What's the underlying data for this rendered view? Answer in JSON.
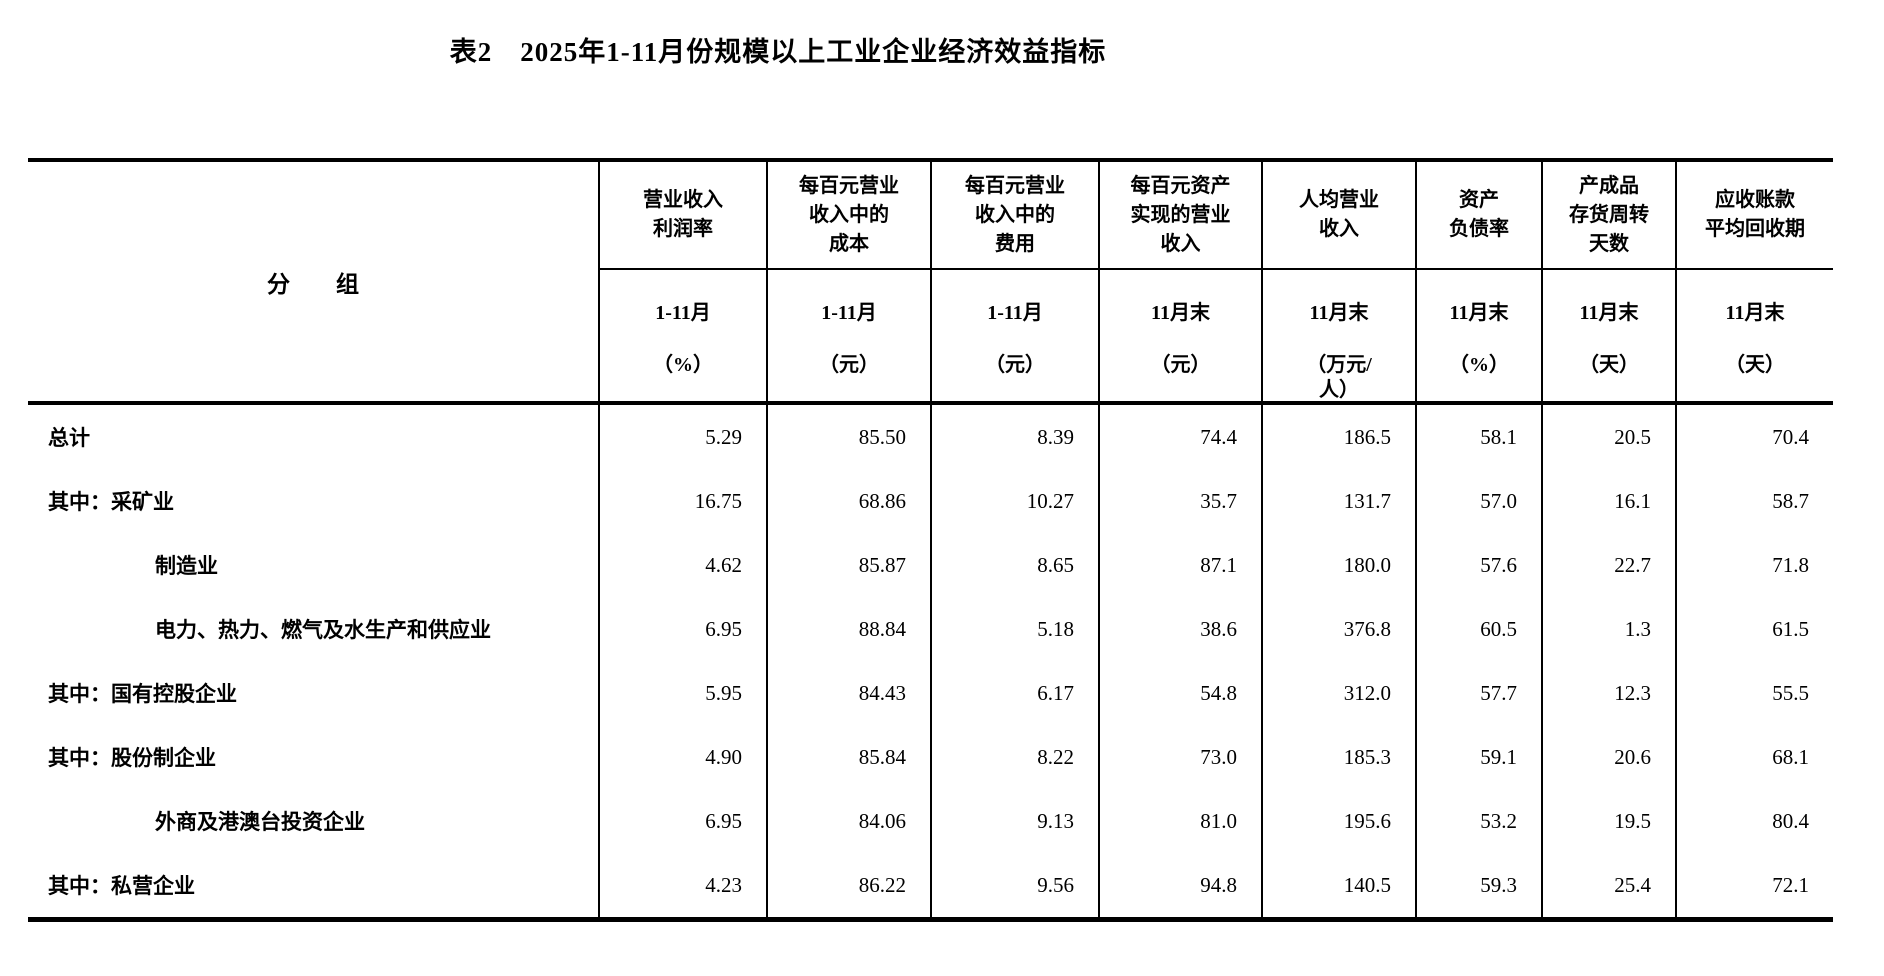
{
  "title": "表2　2025年1-11月份规模以上工业企业经济效益指标",
  "table": {
    "stub_header": "分　　组",
    "columns": [
      {
        "name": "营业收入\n利润率",
        "period": "1-11月",
        "unit": "（%）"
      },
      {
        "name": "每百元营业\n收入中的\n成本",
        "period": "1-11月",
        "unit": "（元）"
      },
      {
        "name": "每百元营业\n收入中的\n费用",
        "period": "1-11月",
        "unit": "（元）"
      },
      {
        "name": "每百元资产\n实现的营业\n收入",
        "period": "11月末",
        "unit": "（元）"
      },
      {
        "name": "人均营业\n收入",
        "period": "11月末",
        "unit": "（万元/\n人）"
      },
      {
        "name": "资产\n负债率",
        "period": "11月末",
        "unit": "（%）"
      },
      {
        "name": "产成品\n存货周转\n天数",
        "period": "11月末",
        "unit": "（天）"
      },
      {
        "name": "应收账款\n平均回收期",
        "period": "11月末",
        "unit": "（天）"
      }
    ],
    "rows": [
      {
        "label": "总计",
        "indent": false,
        "values": [
          "5.29",
          "85.50",
          "8.39",
          "74.4",
          "186.5",
          "58.1",
          "20.5",
          "70.4"
        ]
      },
      {
        "label": "其中：采矿业",
        "indent": false,
        "values": [
          "16.75",
          "68.86",
          "10.27",
          "35.7",
          "131.7",
          "57.0",
          "16.1",
          "58.7"
        ]
      },
      {
        "label": "制造业",
        "indent": true,
        "values": [
          "4.62",
          "85.87",
          "8.65",
          "87.1",
          "180.0",
          "57.6",
          "22.7",
          "71.8"
        ]
      },
      {
        "label": "电力、热力、燃气及水生产和供应业",
        "indent": true,
        "values": [
          "6.95",
          "88.84",
          "5.18",
          "38.6",
          "376.8",
          "60.5",
          "1.3",
          "61.5"
        ]
      },
      {
        "label": "其中：国有控股企业",
        "indent": false,
        "values": [
          "5.95",
          "84.43",
          "6.17",
          "54.8",
          "312.0",
          "57.7",
          "12.3",
          "55.5"
        ]
      },
      {
        "label": "其中：股份制企业",
        "indent": false,
        "values": [
          "4.90",
          "85.84",
          "8.22",
          "73.0",
          "185.3",
          "59.1",
          "20.6",
          "68.1"
        ]
      },
      {
        "label": "外商及港澳台投资企业",
        "indent": true,
        "values": [
          "6.95",
          "84.06",
          "9.13",
          "81.0",
          "195.6",
          "53.2",
          "19.5",
          "80.4"
        ]
      },
      {
        "label": "其中：私营企业",
        "indent": false,
        "values": [
          "4.23",
          "86.22",
          "9.56",
          "94.8",
          "140.5",
          "59.3",
          "25.4",
          "72.1"
        ]
      }
    ],
    "colors": {
      "text": "#000000",
      "background": "#ffffff",
      "rules": "#000000"
    }
  }
}
